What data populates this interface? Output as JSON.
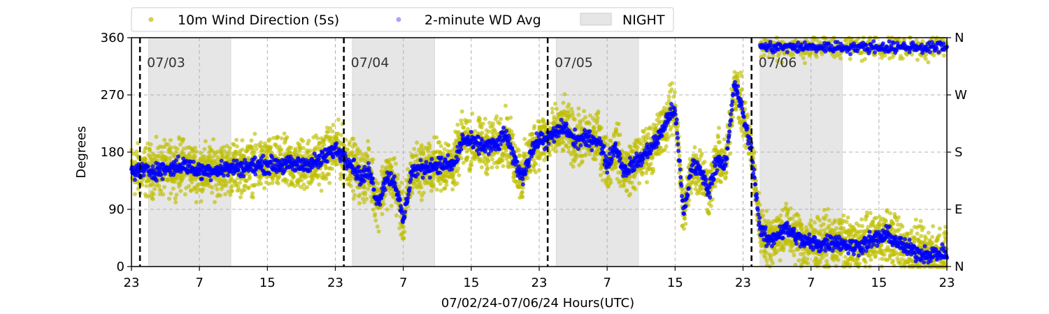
{
  "chart_data": {
    "type": "scatter",
    "xlabel": "07/02/24-07/06/24  Hours(UTC)",
    "ylabel": "Degrees",
    "xlim_hours": [
      23,
      119
    ],
    "ylim": [
      0,
      360
    ],
    "x_ticks": [
      {
        "hour": 23,
        "label": "23"
      },
      {
        "hour": 31,
        "label": "7"
      },
      {
        "hour": 39,
        "label": "15"
      },
      {
        "hour": 47,
        "label": "23"
      },
      {
        "hour": 55,
        "label": "7"
      },
      {
        "hour": 63,
        "label": "15"
      },
      {
        "hour": 71,
        "label": "23"
      },
      {
        "hour": 79,
        "label": "7"
      },
      {
        "hour": 87,
        "label": "15"
      },
      {
        "hour": 95,
        "label": "23"
      },
      {
        "hour": 103,
        "label": "7"
      },
      {
        "hour": 111,
        "label": "15"
      },
      {
        "hour": 119,
        "label": "23"
      }
    ],
    "y_ticks": [
      0,
      90,
      180,
      270,
      360
    ],
    "y_ticks_right": [
      {
        "value": 0,
        "label": "N"
      },
      {
        "value": 90,
        "label": "E"
      },
      {
        "value": 180,
        "label": "S"
      },
      {
        "value": 270,
        "label": "W"
      },
      {
        "value": 360,
        "label": "N"
      }
    ],
    "grid": true,
    "legend_position": "top-left, above plot",
    "day_markers": [
      {
        "hour": 24,
        "label": "07/03"
      },
      {
        "hour": 48,
        "label": "07/04"
      },
      {
        "hour": 72,
        "label": "07/05"
      },
      {
        "hour": 96,
        "label": "07/06"
      }
    ],
    "night_spans": [
      [
        25,
        34.7
      ],
      [
        49,
        58.7
      ],
      [
        73,
        82.7
      ],
      [
        97,
        106.7
      ]
    ],
    "series": [
      {
        "name": "10m Wind Direction (5s)",
        "color": "#bfbf00",
        "marker": "circle",
        "spread": 28
      },
      {
        "name": "2-minute WD Avg",
        "color": "#0000ff",
        "marker": "circle",
        "spread": 9
      }
    ],
    "night_label": "NIGHT",
    "night_color": "#e6e6e6",
    "trend_points": [
      [
        23,
        150
      ],
      [
        27,
        152
      ],
      [
        29,
        160
      ],
      [
        31,
        150
      ],
      [
        35,
        155
      ],
      [
        39,
        160
      ],
      [
        43,
        160
      ],
      [
        45,
        165
      ],
      [
        47,
        185
      ],
      [
        48,
        175
      ],
      [
        49,
        160
      ],
      [
        50,
        140
      ],
      [
        51,
        150
      ],
      [
        52,
        100
      ],
      [
        53,
        140
      ],
      [
        54,
        135
      ],
      [
        55,
        70
      ],
      [
        56,
        150
      ],
      [
        59,
        160
      ],
      [
        61,
        160
      ],
      [
        62,
        200
      ],
      [
        64,
        190
      ],
      [
        66,
        190
      ],
      [
        67,
        210
      ],
      [
        68,
        170
      ],
      [
        69,
        140
      ],
      [
        70,
        180
      ],
      [
        71,
        200
      ],
      [
        72,
        200
      ],
      [
        74,
        220
      ],
      [
        75,
        200
      ],
      [
        77,
        200
      ],
      [
        78,
        200
      ],
      [
        79,
        160
      ],
      [
        80,
        190
      ],
      [
        81,
        150
      ],
      [
        83,
        170
      ],
      [
        85,
        200
      ],
      [
        86,
        230
      ],
      [
        87,
        250
      ],
      [
        88,
        80
      ],
      [
        89,
        160
      ],
      [
        90,
        150
      ],
      [
        91,
        120
      ],
      [
        92,
        170
      ],
      [
        93,
        160
      ],
      [
        94,
        290
      ],
      [
        95,
        240
      ],
      [
        96,
        180
      ],
      [
        97,
        60
      ],
      [
        98,
        40
      ],
      [
        100,
        60
      ],
      [
        102,
        40
      ],
      [
        104,
        35
      ],
      [
        106,
        40
      ],
      [
        108,
        30
      ],
      [
        110,
        40
      ],
      [
        112,
        50
      ],
      [
        114,
        30
      ],
      [
        116,
        20
      ],
      [
        119,
        20
      ]
    ],
    "wrap_segment": {
      "hours": [
        97,
        119
      ],
      "value": 345
    }
  }
}
